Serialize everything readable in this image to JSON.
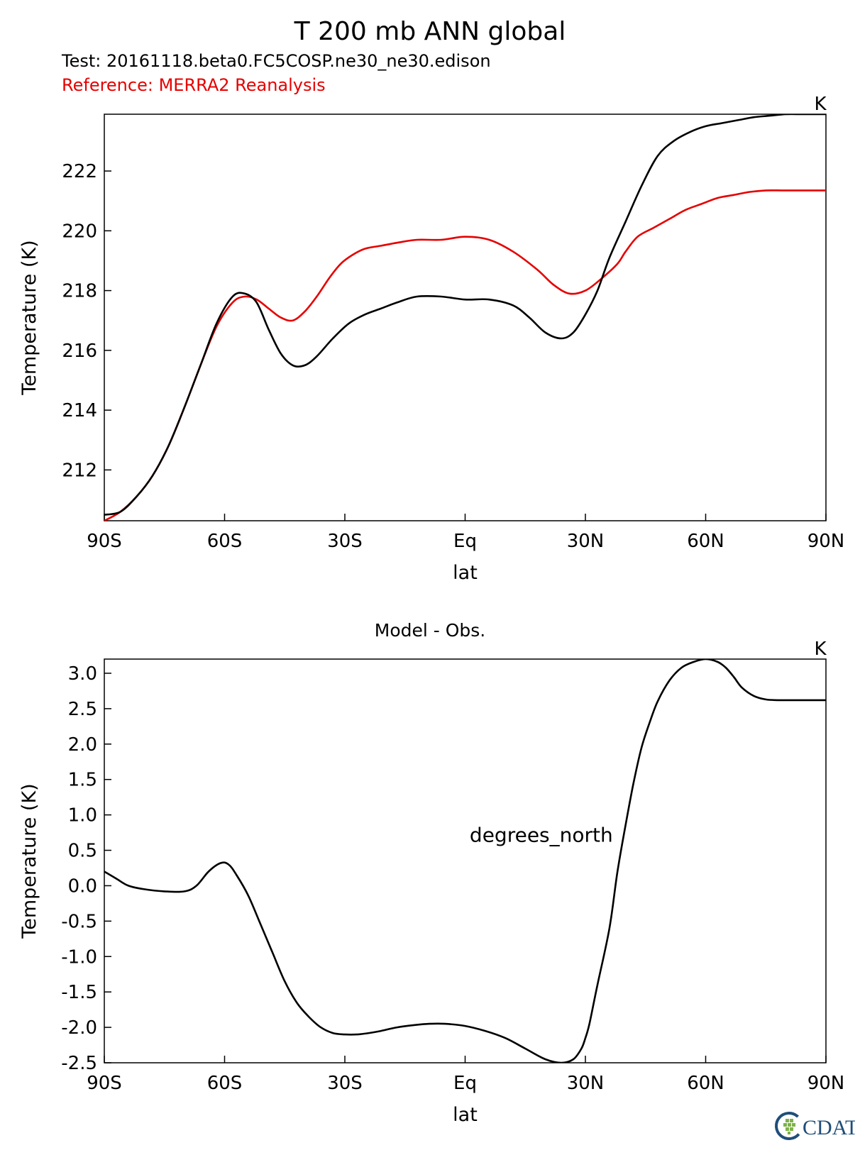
{
  "title": "T 200 mb ANN global",
  "test_label": "Test: 20161118.beta0.FC5COSP.ne30_ne30.edison",
  "reference_label": "Reference: MERRA2 Reanalysis",
  "logo_text": "CDAT",
  "colors": {
    "test": "#000000",
    "reference": "#e60000",
    "axis": "#000000"
  },
  "chart_data": [
    {
      "type": "line",
      "title": "",
      "units": "K",
      "xlabel": "lat",
      "ylabel": "Temperature (K)",
      "xlim": [
        -90,
        90
      ],
      "ylim": [
        210.3,
        223.9
      ],
      "xticks": [
        -90,
        -60,
        -30,
        0,
        30,
        60,
        90
      ],
      "xtick_labels": [
        "90S",
        "60S",
        "30S",
        "Eq",
        "30N",
        "60N",
        "90N"
      ],
      "yticks": [
        212,
        214,
        216,
        218,
        220,
        222
      ],
      "ytick_labels": [
        "212",
        "214",
        "216",
        "218",
        "220",
        "222"
      ],
      "series": [
        {
          "name": "Test",
          "color": "#000000",
          "x": [
            -90,
            -86,
            -82,
            -78,
            -74,
            -70,
            -66,
            -62,
            -58,
            -55,
            -52,
            -49,
            -46,
            -43,
            -40,
            -37,
            -33,
            -29,
            -25,
            -21,
            -17,
            -12,
            -6,
            0,
            6,
            12,
            16,
            20,
            24,
            27,
            30,
            33,
            36,
            40,
            44,
            48,
            52,
            56,
            60,
            64,
            68,
            72,
            76,
            80,
            84,
            88,
            90
          ],
          "y": [
            210.5,
            210.6,
            211.1,
            211.8,
            212.8,
            214.1,
            215.5,
            216.9,
            217.8,
            217.9,
            217.6,
            216.7,
            215.9,
            215.5,
            215.5,
            215.8,
            216.4,
            216.9,
            217.2,
            217.4,
            217.6,
            217.8,
            217.8,
            217.7,
            217.7,
            217.5,
            217.1,
            216.6,
            216.4,
            216.6,
            217.2,
            218.0,
            219.1,
            220.3,
            221.5,
            222.5,
            223.0,
            223.3,
            223.5,
            223.6,
            223.7,
            223.8,
            223.85,
            223.9,
            223.9,
            223.9,
            223.9
          ]
        },
        {
          "name": "Reference",
          "color": "#e60000",
          "x": [
            -90,
            -86,
            -82,
            -78,
            -74,
            -70,
            -66,
            -62,
            -58,
            -55,
            -52,
            -49,
            -46,
            -43,
            -40,
            -37,
            -34,
            -31,
            -28,
            -25,
            -21,
            -17,
            -12,
            -6,
            0,
            6,
            12,
            18,
            22,
            26,
            30,
            34,
            38,
            40,
            43,
            47,
            51,
            55,
            59,
            63,
            67,
            71,
            75,
            79,
            83,
            87,
            90
          ],
          "y": [
            210.3,
            210.6,
            211.1,
            211.8,
            212.8,
            214.1,
            215.5,
            216.8,
            217.6,
            217.8,
            217.7,
            217.4,
            217.1,
            217.0,
            217.3,
            217.8,
            218.4,
            218.9,
            219.2,
            219.4,
            219.5,
            219.6,
            219.7,
            219.7,
            219.8,
            219.7,
            219.3,
            218.7,
            218.2,
            217.9,
            218.0,
            218.4,
            218.9,
            219.3,
            219.8,
            220.1,
            220.4,
            220.7,
            220.9,
            221.1,
            221.2,
            221.3,
            221.35,
            221.35,
            221.35,
            221.35,
            221.35
          ]
        }
      ]
    },
    {
      "type": "line",
      "title": "Model - Obs.",
      "units": "K",
      "annotation": "degrees_north",
      "xlabel": "lat",
      "ylabel": "Temperature (K)",
      "xlim": [
        -90,
        90
      ],
      "ylim": [
        -2.5,
        3.2
      ],
      "xticks": [
        -90,
        -60,
        -30,
        0,
        30,
        60,
        90
      ],
      "xtick_labels": [
        "90S",
        "60S",
        "30S",
        "Eq",
        "30N",
        "60N",
        "90N"
      ],
      "yticks": [
        3.0,
        2.5,
        2.0,
        1.5,
        1.0,
        0.5,
        0.0,
        -0.5,
        -1.0,
        -1.5,
        -2.0,
        -2.5
      ],
      "ytick_labels": [
        "3.0",
        "2.5",
        "2.0",
        "1.5",
        "1.0",
        "0.5",
        "0.0",
        "-0.5",
        "-1.0",
        "-1.5",
        "-2.0",
        "-2.5"
      ],
      "series": [
        {
          "name": "Model - Obs.",
          "color": "#000000",
          "x": [
            -90,
            -87,
            -84,
            -80,
            -75,
            -70,
            -67,
            -64,
            -61,
            -59,
            -57,
            -54,
            -51,
            -48,
            -45,
            -42,
            -39,
            -36,
            -33,
            -30,
            -27,
            -24,
            -21,
            -17,
            -13,
            -9,
            -5,
            0,
            5,
            10,
            15,
            20,
            24,
            27,
            29,
            30,
            31,
            33,
            36,
            38,
            40,
            42,
            44,
            46,
            48,
            51,
            54,
            57,
            60,
            63,
            65,
            67,
            69,
            72,
            75,
            78,
            81,
            84,
            87,
            90
          ],
          "y": [
            0.2,
            0.1,
            0.0,
            -0.05,
            -0.08,
            -0.08,
            0.0,
            0.2,
            0.32,
            0.3,
            0.15,
            -0.15,
            -0.55,
            -0.95,
            -1.35,
            -1.65,
            -1.85,
            -2.0,
            -2.08,
            -2.1,
            -2.1,
            -2.08,
            -2.05,
            -2.0,
            -1.97,
            -1.95,
            -1.95,
            -1.98,
            -2.05,
            -2.15,
            -2.3,
            -2.45,
            -2.5,
            -2.45,
            -2.3,
            -2.15,
            -1.95,
            -1.4,
            -0.6,
            0.2,
            0.85,
            1.45,
            1.95,
            2.3,
            2.6,
            2.9,
            3.08,
            3.16,
            3.2,
            3.16,
            3.08,
            2.95,
            2.8,
            2.68,
            2.63,
            2.62,
            2.62,
            2.62,
            2.62,
            2.62
          ]
        }
      ]
    }
  ]
}
